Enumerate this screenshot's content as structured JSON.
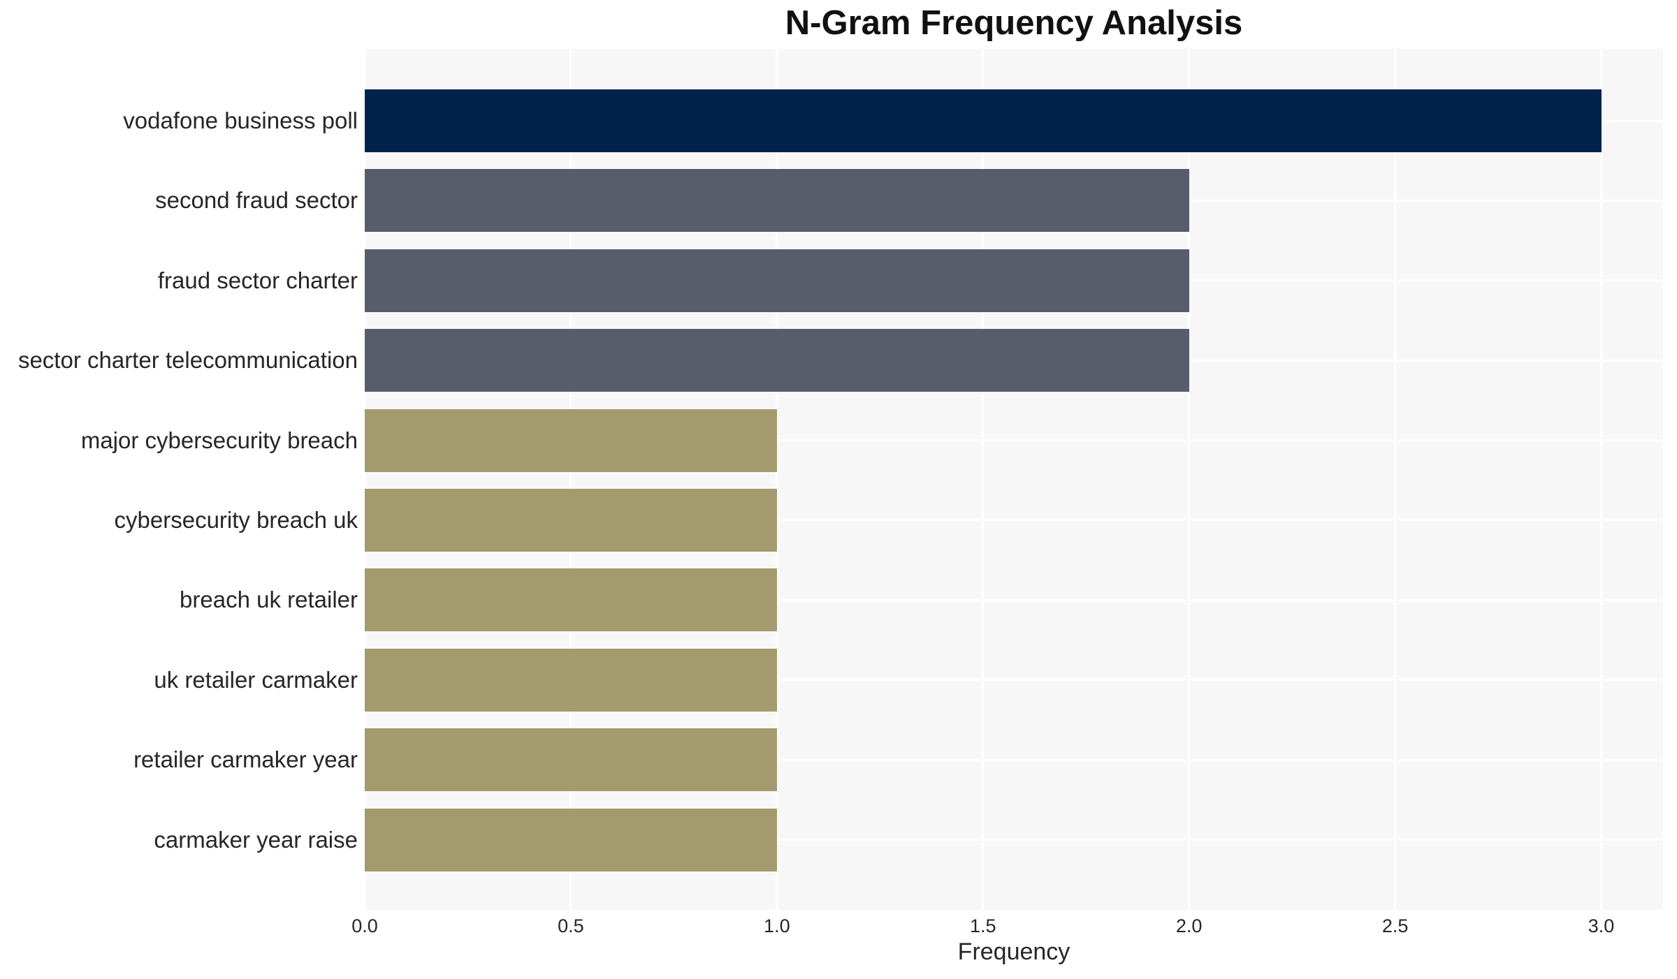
{
  "title": "N-Gram Frequency Analysis",
  "chart_data": {
    "type": "bar",
    "orientation": "horizontal",
    "title": "N-Gram Frequency Analysis",
    "xlabel": "Frequency",
    "ylabel": "",
    "categories": [
      "vodafone business poll",
      "second fraud sector",
      "fraud sector charter",
      "sector charter telecommunication",
      "major cybersecurity breach",
      "cybersecurity breach uk",
      "breach uk retailer",
      "uk retailer carmaker",
      "retailer carmaker year",
      "carmaker year raise"
    ],
    "values": [
      3,
      2,
      2,
      2,
      1,
      1,
      1,
      1,
      1,
      1
    ],
    "bar_colors": [
      "#00234d",
      "#575d6b",
      "#575d6b",
      "#575d6b",
      "#a39a6d",
      "#a39a6d",
      "#a39a6d",
      "#a39a6d",
      "#a39a6d",
      "#a39a6d"
    ],
    "x_ticks": [
      0.0,
      0.5,
      1.0,
      1.5,
      2.0,
      2.5,
      3.0
    ],
    "x_tick_labels": [
      "0.0",
      "0.5",
      "1.0",
      "1.5",
      "2.0",
      "2.5",
      "3.0"
    ],
    "xlim": [
      0,
      3.15
    ],
    "grid": true,
    "legend": false
  },
  "style": {
    "plot_background": "#f7f7f7",
    "grid_color": "#ffffff",
    "axis_text_color": "#262626",
    "title_color": "#111111",
    "color_value_3": "#00234d",
    "color_value_2": "#575d6b",
    "color_value_1": "#a39a6d"
  }
}
